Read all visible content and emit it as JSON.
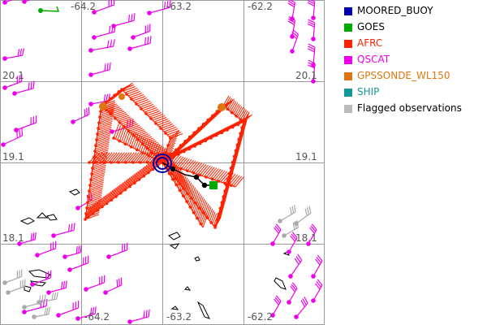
{
  "map": {
    "lon_labels": [
      "-64.2",
      "-63.2",
      "-62.2"
    ],
    "lat_labels": [
      "20.1",
      "19.1",
      "18.1"
    ]
  },
  "legend": [
    {
      "label": "MOORED_BUOY",
      "color": "#0000aa"
    },
    {
      "label": "GOES",
      "color": "#00aa00"
    },
    {
      "label": "AFRC",
      "color": "#ff2200"
    },
    {
      "label": "QSCAT",
      "color": "#ee00ee"
    },
    {
      "label": "GPSSONDE_WL150",
      "color": "#dd7711"
    },
    {
      "label": "SHIP",
      "color": "#119999"
    },
    {
      "label": "Flagged observations",
      "color": "#bbbbbb"
    }
  ],
  "colors": {
    "grid": "#999999",
    "flight_track": "#ff2200",
    "qscat": "#ee00ee",
    "flagged": "#aaaaaa",
    "moored_buoy": "#0000aa",
    "goes": "#00aa00",
    "gpssonde": "#dd7711",
    "coastline": "#000000",
    "storm_track": "#000000"
  },
  "icons": [
    "moored-buoy-marker",
    "goes-marker",
    "gpssonde-marker",
    "storm-track"
  ]
}
